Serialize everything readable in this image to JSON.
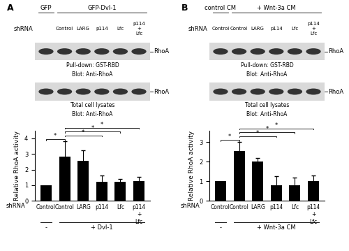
{
  "chart_data": [
    {
      "type": "bar",
      "categories": [
        "Control",
        "Control",
        "LARG",
        "p114",
        "Lfc",
        "p114 + Lfc"
      ],
      "values": [
        1,
        2.85,
        2.55,
        1.2,
        1.2,
        1.25
      ],
      "errors": [
        null,
        0.95,
        0.7,
        0.4,
        0.2,
        0.3
      ],
      "color": "#000000",
      "ylim": [
        0,
        4.5
      ],
      "yticks": [
        0,
        1,
        2,
        3,
        4
      ],
      "y_label": "Relative RhoA activity",
      "x_label": "shRNA",
      "groups": [
        {
          "text": "-",
          "from": 0,
          "to": 0
        },
        {
          "text": "+ Dvl-1",
          "from": 1,
          "to": 5
        }
      ],
      "significance": [
        {
          "from": 1,
          "to": 0,
          "text": "*"
        },
        {
          "from": 1,
          "to": 3,
          "text": "*"
        },
        {
          "from": 1,
          "to": 4,
          "text": "*"
        },
        {
          "from": 1,
          "to": 5,
          "text": "*"
        }
      ]
    },
    {
      "type": "bar",
      "categories": [
        "Control",
        "Control",
        "LARG",
        "p114",
        "Lfc",
        "p114 + Lfc"
      ],
      "values": [
        1,
        2.55,
        2.0,
        0.8,
        0.8,
        1.0
      ],
      "errors": [
        null,
        0.45,
        0.2,
        0.45,
        0.4,
        0.3
      ],
      "color": "#000000",
      "ylim": [
        0,
        3.6
      ],
      "yticks": [
        0,
        1,
        2,
        3
      ],
      "y_label": "Relative RhoA activity",
      "x_label": "shRNA",
      "groups": [
        {
          "text": "-",
          "from": 0,
          "to": 0
        },
        {
          "text": "+ Wnt-3a CM",
          "from": 1,
          "to": 5
        }
      ],
      "significance": [
        {
          "from": 1,
          "to": 0,
          "text": "*"
        },
        {
          "from": 1,
          "to": 3,
          "text": "*"
        },
        {
          "from": 1,
          "to": 4,
          "text": "*"
        },
        {
          "from": 1,
          "to": 5,
          "text": "*"
        }
      ]
    }
  ],
  "blots": [
    {
      "panel": "A",
      "conditions": [
        {
          "text": "GFP",
          "from": 0,
          "to": 0
        },
        {
          "text": "GFP-Dvl-1",
          "from": 1,
          "to": 5
        }
      ],
      "row_label": "shRNA",
      "lanes": [
        null,
        "Control",
        "LARG",
        "p114",
        "Lfc",
        "p114 + Lfc"
      ],
      "target": "RhoA",
      "blots": [
        {
          "captions": [
            "Pull-down: GST-RBD",
            "Blot: Anti-RhoA"
          ]
        },
        {
          "captions": [
            "Total cell lysates",
            "Blot: Anti-RhoA"
          ]
        }
      ]
    },
    {
      "panel": "B",
      "conditions": [
        {
          "text": "control CM",
          "from": 0,
          "to": 0
        },
        {
          "text": "+ Wnt-3a CM",
          "from": 1,
          "to": 5
        }
      ],
      "row_label": "shRNA",
      "lanes": [
        "Control",
        "Control",
        "LARG",
        "p114",
        "Lfc",
        "p114 + Lfc"
      ],
      "target": "RhoA",
      "blots": [
        {
          "captions": [
            "Pull-down: GST-RBD",
            "Blot: Anti-RhoA"
          ]
        },
        {
          "captions": [
            "Total cell lysates",
            "Blot: Anti-RhoA"
          ]
        }
      ]
    }
  ]
}
